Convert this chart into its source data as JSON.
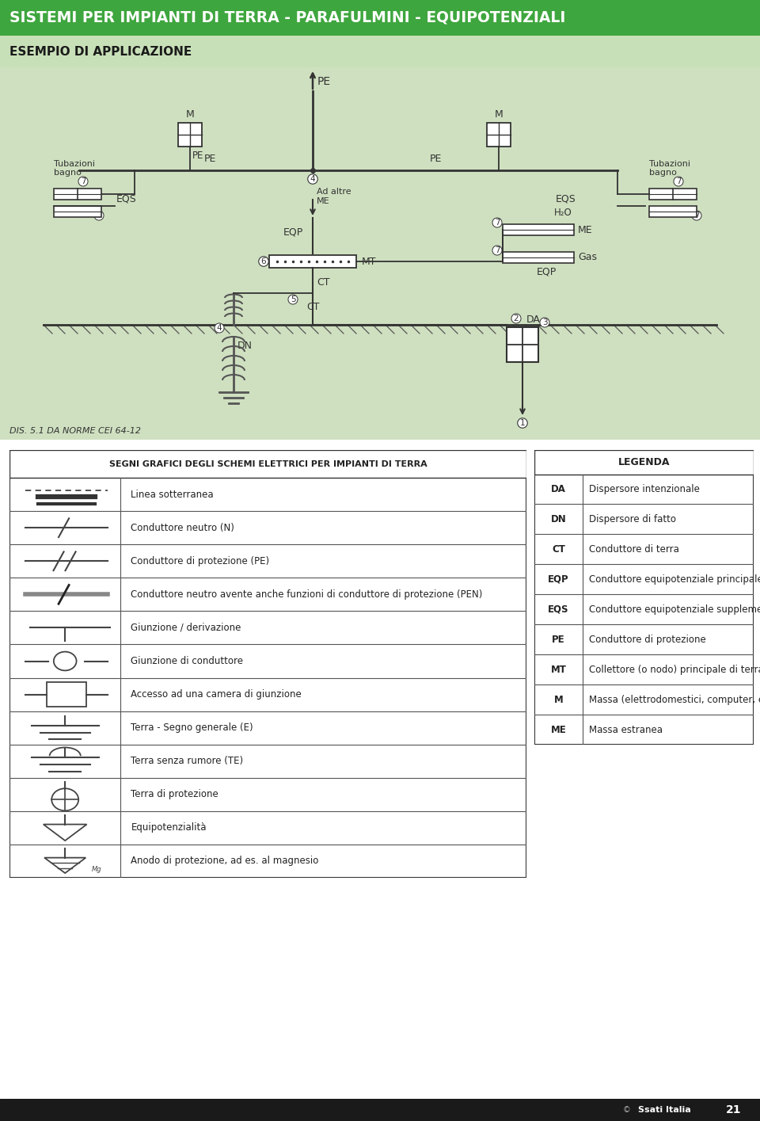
{
  "header_bg": "#3ea63e",
  "header_text": "SISTEMI PER IMPIANTI DI TERRA - PARAFULMINI - EQUIPOTENZIALI",
  "header_text_color": "#ffffff",
  "subheader_bg": "#c8e0b8",
  "subheader_text": "ESEMPIO DI APPLICAZIONE",
  "subheader_text_color": "#1a1a1a",
  "diagram_bg": "#cfe0c0",
  "left_table_title": "SEGNI GRAFICI DEGLI SCHEMI ELETTRICI PER IMPIANTI DI TERRA",
  "right_table_title": "LEGENDA",
  "left_rows": [
    "Linea sotterranea",
    "Conduttore neutro (N)",
    "Conduttore di protezione (PE)",
    "Conduttore neutro avente anche funzioni di conduttore di protezione (PEN)",
    "Giunzione / derivazione",
    "Giunzione di conduttore",
    "Accesso ad una camera di giunzione",
    "Terra - Segno generale (E)",
    "Terra senza rumore (TE)",
    "Terra di protezione",
    "Equipotenzialità",
    "Anodo di protezione, ad es. al magnesio"
  ],
  "right_rows": [
    [
      "DA",
      "Dispersore intenzionale"
    ],
    [
      "DN",
      "Dispersore di fatto"
    ],
    [
      "CT",
      "Conduttore di terra"
    ],
    [
      "EQP",
      "Conduttore equipotenziale principale"
    ],
    [
      "EQS",
      "Conduttore equipotenziale supplementare"
    ],
    [
      "PE",
      "Conduttore di protezione"
    ],
    [
      "MT",
      "Collettore (o nodo) principale di terra"
    ],
    [
      "M",
      "Massa (elettrodomestici, computer, ecc.)"
    ],
    [
      "ME",
      "Massa estranea"
    ]
  ],
  "footer_page": "21",
  "dis_label": "DIS. 5.1 DA NORME CEI 64-12"
}
